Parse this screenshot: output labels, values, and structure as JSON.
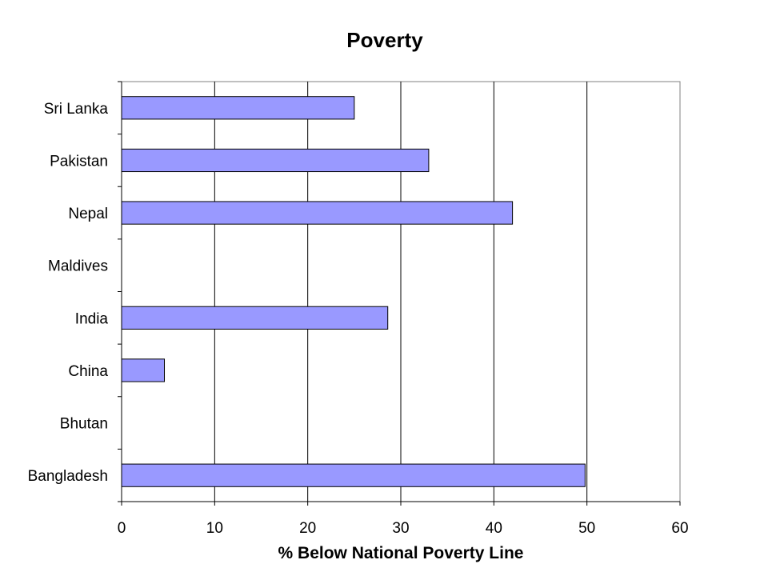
{
  "chart_data": {
    "type": "bar",
    "orientation": "horizontal",
    "title": "Poverty",
    "xlabel": "% Below National Poverty Line",
    "ylabel": "",
    "categories": [
      "Sri Lanka",
      "Pakistan",
      "Nepal",
      "Maldives",
      "India",
      "China",
      "Bhutan",
      "Bangladesh"
    ],
    "values": [
      25,
      33,
      42,
      null,
      28.6,
      4.6,
      null,
      49.8
    ],
    "xlim": [
      0,
      60
    ],
    "xticks": [
      0,
      10,
      20,
      30,
      40,
      50,
      60
    ],
    "grid": "vertical",
    "legend": "none",
    "bar_color": "#9999ff",
    "bar_edge_color": "#000000"
  }
}
